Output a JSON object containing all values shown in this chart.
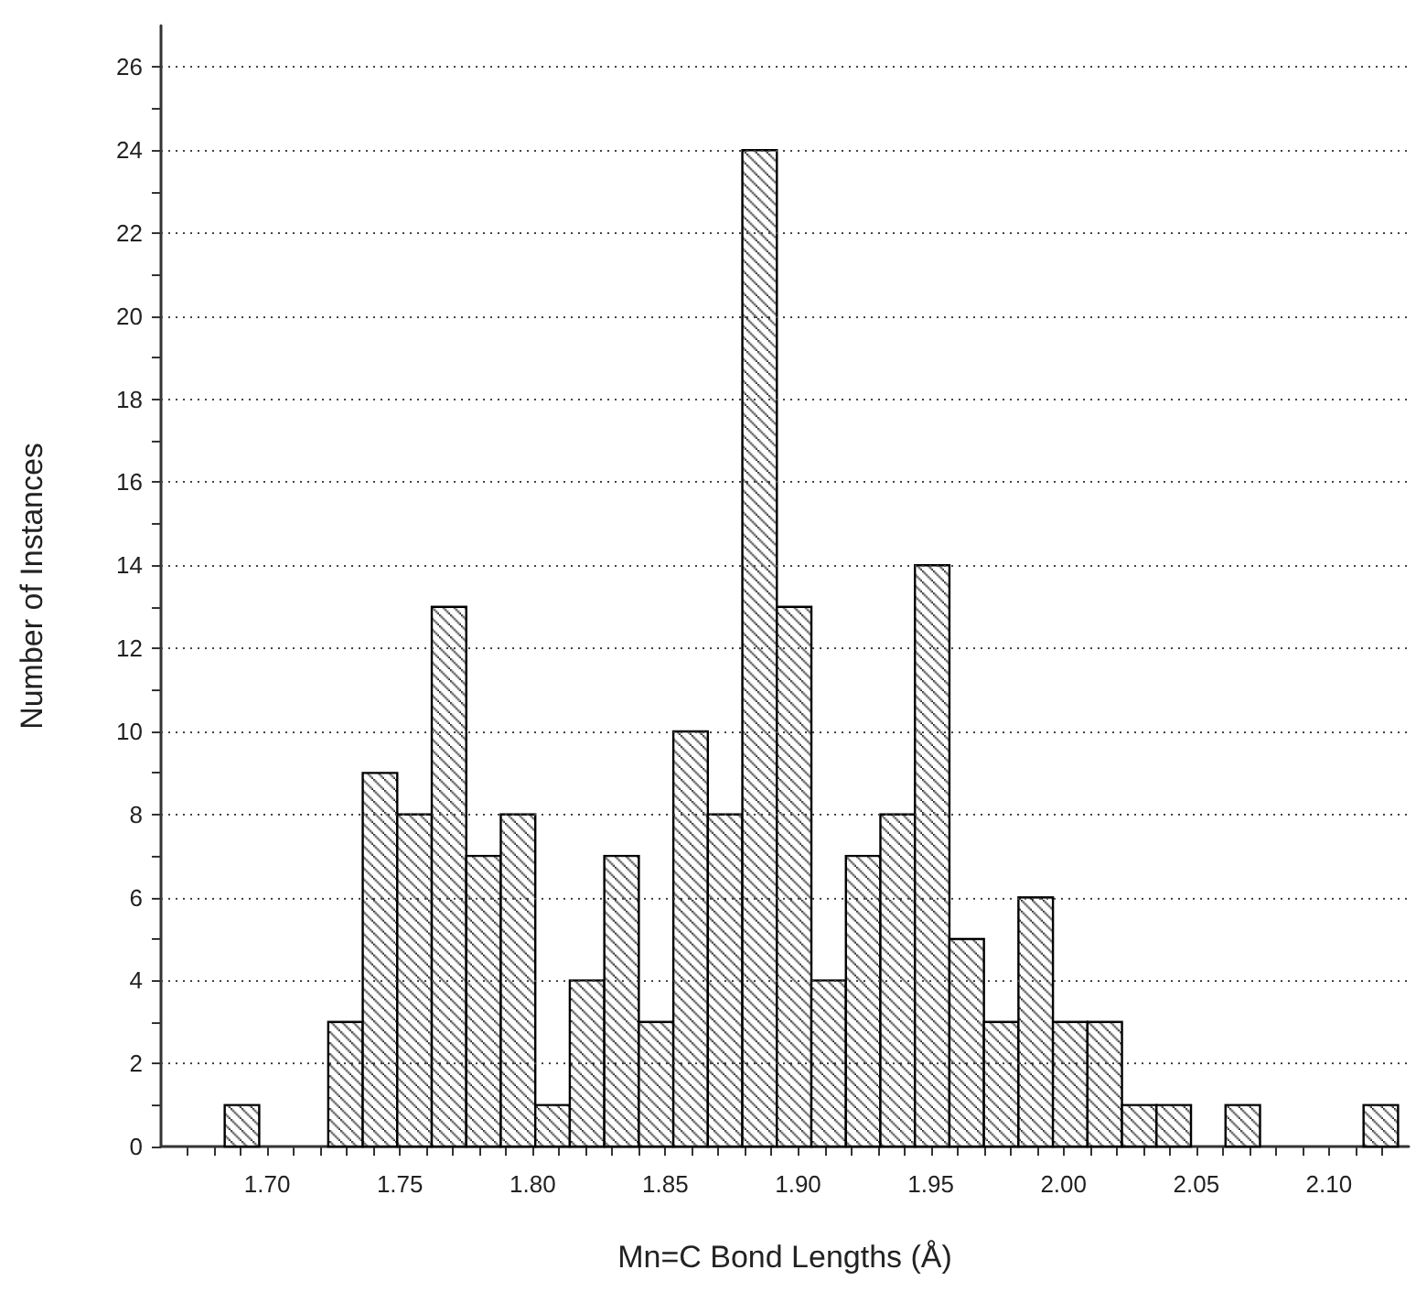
{
  "chart_data": {
    "type": "histogram",
    "xlabel": "Mn=C Bond Lengths (Å)",
    "ylabel": "Number of Instances",
    "color": "#000000",
    "bins": [
      1.684,
      1.697,
      1.71,
      1.723,
      1.736,
      1.749,
      1.762,
      1.775,
      1.788,
      1.801,
      1.814,
      1.827,
      1.84,
      1.853,
      1.866,
      1.879,
      1.892,
      1.905,
      1.918,
      1.931,
      1.944,
      1.957,
      1.97,
      1.983,
      1.996,
      2.009,
      2.022,
      2.035,
      2.048,
      2.061,
      2.074,
      2.087,
      2.1,
      2.113,
      2.126
    ],
    "values": [
      1,
      0,
      0,
      3,
      9,
      8,
      13,
      7,
      8,
      1,
      4,
      7,
      3,
      10,
      8,
      24,
      13,
      4,
      7,
      8,
      14,
      5,
      3,
      6,
      3,
      3,
      1,
      1,
      0,
      1,
      0,
      0,
      0,
      1
    ],
    "xlim": [
      1.66,
      2.13
    ],
    "xticks": [
      {
        "value": 1.67,
        "label": null
      },
      {
        "value": 1.68,
        "label": null
      },
      {
        "value": 1.69,
        "label": null
      },
      {
        "value": 1.7,
        "label": "1.70"
      },
      {
        "value": 1.71,
        "label": null
      },
      {
        "value": 1.72,
        "label": null
      },
      {
        "value": 1.73,
        "label": null
      },
      {
        "value": 1.74,
        "label": null
      },
      {
        "value": 1.75,
        "label": "1.75"
      },
      {
        "value": 1.76,
        "label": null
      },
      {
        "value": 1.77,
        "label": null
      },
      {
        "value": 1.78,
        "label": null
      },
      {
        "value": 1.79,
        "label": null
      },
      {
        "value": 1.8,
        "label": "1.80"
      },
      {
        "value": 1.81,
        "label": null
      },
      {
        "value": 1.82,
        "label": null
      },
      {
        "value": 1.83,
        "label": null
      },
      {
        "value": 1.84,
        "label": null
      },
      {
        "value": 1.85,
        "label": "1.85"
      },
      {
        "value": 1.86,
        "label": null
      },
      {
        "value": 1.87,
        "label": null
      },
      {
        "value": 1.88,
        "label": null
      },
      {
        "value": 1.89,
        "label": null
      },
      {
        "value": 1.9,
        "label": "1.90"
      },
      {
        "value": 1.91,
        "label": null
      },
      {
        "value": 1.92,
        "label": null
      },
      {
        "value": 1.93,
        "label": null
      },
      {
        "value": 1.94,
        "label": null
      },
      {
        "value": 1.95,
        "label": "1.95"
      },
      {
        "value": 1.96,
        "label": null
      },
      {
        "value": 1.97,
        "label": null
      },
      {
        "value": 1.98,
        "label": null
      },
      {
        "value": 1.99,
        "label": null
      },
      {
        "value": 2.0,
        "label": "2.00"
      },
      {
        "value": 2.01,
        "label": null
      },
      {
        "value": 2.02,
        "label": null
      },
      {
        "value": 2.03,
        "label": null
      },
      {
        "value": 2.04,
        "label": null
      },
      {
        "value": 2.05,
        "label": "2.05"
      },
      {
        "value": 2.06,
        "label": null
      },
      {
        "value": 2.07,
        "label": null
      },
      {
        "value": 2.08,
        "label": null
      },
      {
        "value": 2.09,
        "label": null
      },
      {
        "value": 2.1,
        "label": "2.10"
      },
      {
        "value": 2.11,
        "label": null
      },
      {
        "value": 2.12,
        "label": null
      }
    ],
    "ylim": [
      0,
      27
    ],
    "yticks": [
      0,
      {
        "value": 1,
        "label": null
      },
      2,
      {
        "value": 3,
        "label": null
      },
      4,
      {
        "value": 5,
        "label": null
      },
      6,
      {
        "value": 7,
        "label": null
      },
      8,
      {
        "value": 9,
        "label": null
      },
      10,
      {
        "value": 11,
        "label": null
      },
      12,
      {
        "value": 13,
        "label": null
      },
      14,
      {
        "value": 15,
        "label": null
      },
      16,
      {
        "value": 17,
        "label": null
      },
      18,
      {
        "value": 19,
        "label": null
      },
      20,
      {
        "value": 21,
        "label": null
      },
      22,
      {
        "value": 23,
        "label": null
      },
      24,
      {
        "value": 25,
        "label": null
      },
      26
    ],
    "grid": "y"
  }
}
